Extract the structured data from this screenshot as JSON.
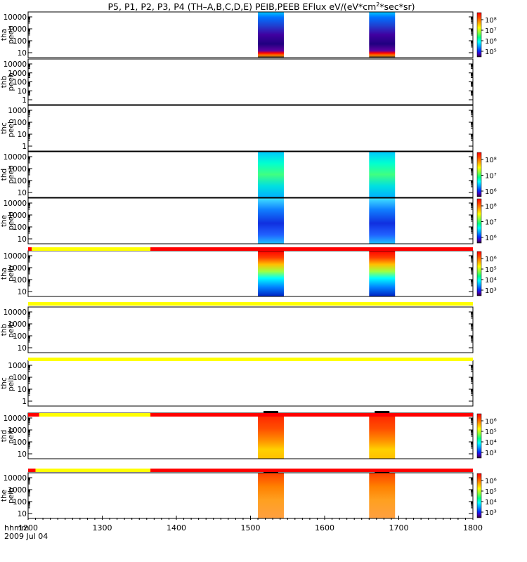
{
  "chart_data": {
    "type": "heatmap",
    "title_parts": [
      "P5, P1, P2, P3, P4 (TH–A,B,C,D,E) PEIB,PEEB EFlux eV/(eV*cm",
      "2",
      "*sec*sr)"
    ],
    "x_ticks": [
      "1200",
      "1300",
      "1400",
      "1500",
      "1600",
      "1700",
      "1800"
    ],
    "x_range": [
      1200,
      1800
    ],
    "x_label": "hhmm",
    "date_label": "2009 Jul 04",
    "data_windows": [
      {
        "start": 1510,
        "end": 1545
      },
      {
        "start": 1660,
        "end": 1695
      }
    ],
    "panels": [
      {
        "probe": "tha",
        "product": "peeb",
        "y_ticks": [
          "10000",
          "1000",
          "100",
          "10"
        ],
        "has_data": true,
        "colorbar": [
          "10⁸",
          "10⁷",
          "10⁶",
          "10⁵"
        ],
        "palette": "deep"
      },
      {
        "probe": "thb",
        "product": "peeb",
        "y_ticks": [
          "10000",
          "1000",
          "100",
          "10",
          "1"
        ],
        "has_data": false
      },
      {
        "probe": "thc",
        "product": "peeb",
        "y_ticks": [
          "1000",
          "100",
          "10",
          "1"
        ],
        "has_data": false
      },
      {
        "probe": "thd",
        "product": "peeb",
        "y_ticks": [
          "10000",
          "1000",
          "100",
          "10"
        ],
        "has_data": true,
        "colorbar": [
          "10⁸",
          "10⁷",
          "10⁶"
        ],
        "palette": "cyan"
      },
      {
        "probe": "the",
        "product": "peeb",
        "y_ticks": [
          "10000",
          "1000",
          "100",
          "10"
        ],
        "has_data": true,
        "colorbar": [
          "10⁸",
          "10⁷",
          "10⁶"
        ],
        "palette": "blue"
      },
      {
        "probe": "tha",
        "product": "peib",
        "y_ticks": [
          "10000",
          "1000",
          "100",
          "10"
        ],
        "has_data": true,
        "colorbar": [
          "10⁶",
          "10⁵",
          "10⁴",
          "10³"
        ],
        "palette": "ion"
      },
      {
        "probe": "thb",
        "product": "peib",
        "y_ticks": [
          "10000",
          "1000",
          "100",
          "10"
        ],
        "has_data": false
      },
      {
        "probe": "thc",
        "product": "peib",
        "y_ticks": [
          "1000",
          "100",
          "10",
          "1"
        ],
        "has_data": false
      },
      {
        "probe": "thd",
        "product": "peib",
        "y_ticks": [
          "10000",
          "1000",
          "100",
          "10"
        ],
        "has_data": true,
        "colorbar": [
          "10⁶",
          "10⁵",
          "10⁴",
          "10³"
        ],
        "palette": "hot"
      },
      {
        "probe": "the",
        "product": "peib",
        "y_ticks": [
          "10000",
          "1000",
          "100",
          "10"
        ],
        "has_data": true,
        "colorbar": [
          "10⁶",
          "10⁵",
          "10⁴",
          "10³"
        ],
        "palette": "orange"
      }
    ],
    "mode_bars": [
      {
        "after_panel": 4,
        "segments": [
          {
            "from": 1200,
            "to": 1205,
            "color": "#ff0000"
          },
          {
            "from": 1205,
            "to": 1365,
            "color": "#ffff00"
          },
          {
            "from": 1365,
            "to": 1800,
            "color": "#ff0000"
          }
        ]
      },
      {
        "after_panel": 5,
        "segments": [
          {
            "from": 1200,
            "to": 1800,
            "color": "#ffff00"
          }
        ]
      },
      {
        "after_panel": 6,
        "segments": [
          {
            "from": 1200,
            "to": 1800,
            "color": "#ffff00"
          }
        ]
      },
      {
        "after_panel": 7,
        "segments": [
          {
            "from": 1200,
            "to": 1215,
            "color": "#ff0000"
          },
          {
            "from": 1215,
            "to": 1365,
            "color": "#ffff00"
          },
          {
            "from": 1365,
            "to": 1800,
            "color": "#ff0000"
          }
        ]
      },
      {
        "after_panel": 8,
        "segments": [
          {
            "from": 1200,
            "to": 1210,
            "color": "#ff0000"
          },
          {
            "from": 1210,
            "to": 1365,
            "color": "#ffff00"
          },
          {
            "from": 1365,
            "to": 1800,
            "color": "#ff0000"
          }
        ]
      }
    ]
  }
}
